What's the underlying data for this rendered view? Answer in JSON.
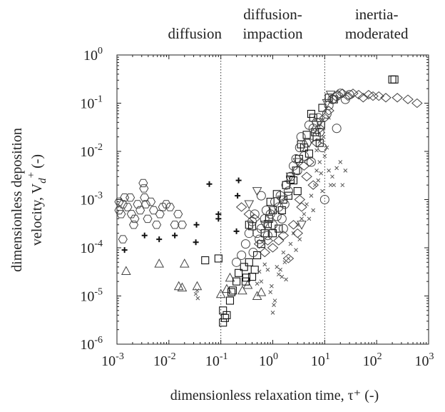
{
  "chart_data": {
    "type": "scatter",
    "title": "",
    "xlabel": "dimensionless relaxation time, τ⁺ (-)",
    "ylabel_line1": "dimensionless deposition",
    "ylabel_line2": "velocity, V",
    "ylabel_sub": "d",
    "ylabel_sup": "+",
    "ylabel_tail": " (-)",
    "x_scale": "log",
    "y_scale": "log",
    "xlim": [
      0.001,
      1000
    ],
    "ylim": [
      1e-06,
      1
    ],
    "grid": false,
    "x_ticks": [
      {
        "base": "10",
        "exp": "-3",
        "value": 0.001
      },
      {
        "base": "10",
        "exp": "-2",
        "value": 0.01
      },
      {
        "base": "10",
        "exp": "-1",
        "value": 0.1
      },
      {
        "base": "10",
        "exp": "0",
        "value": 1
      },
      {
        "base": "10",
        "exp": "1",
        "value": 10
      },
      {
        "base": "10",
        "exp": "2",
        "value": 100
      },
      {
        "base": "10",
        "exp": "3",
        "value": 1000
      }
    ],
    "y_ticks": [
      {
        "base": "10",
        "exp": "-6",
        "value": 1e-06
      },
      {
        "base": "10",
        "exp": "-5",
        "value": 1e-05
      },
      {
        "base": "10",
        "exp": "-4",
        "value": 0.0001
      },
      {
        "base": "10",
        "exp": "-3",
        "value": 0.001
      },
      {
        "base": "10",
        "exp": "-2",
        "value": 0.01
      },
      {
        "base": "10",
        "exp": "-1",
        "value": 0.1
      },
      {
        "base": "10",
        "exp": "0",
        "value": 1
      }
    ],
    "regime_boundaries": [
      0.1,
      10
    ],
    "regions": [
      {
        "lines": [
          "diffusion"
        ],
        "x_center": 0.0316
      },
      {
        "lines": [
          "diffusion-",
          "impaction"
        ],
        "x_center": 1
      },
      {
        "lines": [
          "inertia-",
          "moderated"
        ],
        "x_center": 100
      }
    ],
    "series": [
      {
        "marker": "hexagon",
        "points": [
          [
            0.0011,
            0.0006
          ],
          [
            0.0011,
            0.0009
          ],
          [
            0.0012,
            0.0005
          ],
          [
            0.0013,
            0.0008
          ],
          [
            0.0014,
            0.0011
          ],
          [
            0.0016,
            0.0007
          ],
          [
            0.0018,
            0.0011
          ],
          [
            0.0019,
            0.0005
          ],
          [
            0.0022,
            0.0004
          ],
          [
            0.0025,
            0.0008
          ],
          [
            0.0028,
            0.0006
          ],
          [
            0.0032,
            0.0022
          ],
          [
            0.0033,
            0.0017
          ],
          [
            0.0036,
            0.0008
          ],
          [
            0.0034,
            0.0011
          ],
          [
            0.0039,
            0.0004
          ],
          [
            0.0045,
            0.0009
          ],
          [
            0.0051,
            0.0006
          ],
          [
            0.0058,
            0.0003
          ],
          [
            0.0067,
            0.0005
          ],
          [
            0.0076,
            0.0007
          ],
          [
            0.0089,
            0.0008
          ],
          [
            0.0105,
            0.0007
          ],
          [
            0.013,
            0.0003
          ],
          [
            0.015,
            0.0005
          ],
          [
            0.018,
            0.0003
          ],
          [
            0.0021,
            0.0003
          ],
          [
            0.0013,
            0.00015
          ]
        ]
      },
      {
        "marker": "plus",
        "points": [
          [
            0.0014,
            9e-05
          ],
          [
            0.0034,
            0.00018
          ],
          [
            0.0065,
            0.00015
          ],
          [
            0.013,
            0.00018
          ],
          [
            0.033,
            0.00013
          ],
          [
            0.034,
            0.0003
          ],
          [
            0.06,
            0.0021
          ],
          [
            0.09,
            0.0005
          ],
          [
            0.09,
            0.0004
          ],
          [
            0.2,
            0.00022
          ],
          [
            0.21,
            0.0012
          ],
          [
            0.22,
            0.0025
          ]
        ]
      },
      {
        "marker": "triangle",
        "points": [
          [
            0.0015,
            3.3e-05
          ],
          [
            0.0065,
            4.7e-05
          ],
          [
            0.0155,
            1.6e-05
          ],
          [
            0.018,
            1.5e-05
          ],
          [
            0.02,
            4.7e-05
          ],
          [
            0.035,
            1.6e-05
          ],
          [
            0.1,
            1.1e-05
          ],
          [
            0.13,
            1.4e-05
          ],
          [
            0.15,
            2.4e-05
          ],
          [
            0.26,
            1.3e-05
          ],
          [
            0.33,
            1.7e-05
          ],
          [
            0.5,
            1e-05
          ],
          [
            0.6,
            1.2e-05
          ]
        ]
      },
      {
        "marker": "square",
        "points": [
          [
            0.11,
            5e-06
          ],
          [
            0.12,
            3.5e-06
          ],
          [
            0.11,
            2.8e-06
          ],
          [
            0.13,
            4e-06
          ],
          [
            0.15,
            8e-06
          ],
          [
            0.16,
            1.2e-05
          ],
          [
            0.17,
            1.3e-05
          ],
          [
            0.2,
            2e-05
          ],
          [
            0.22,
            3e-05
          ],
          [
            0.28,
            4e-05
          ],
          [
            0.3,
            2e-05
          ],
          [
            0.31,
            2.4e-05
          ],
          [
            0.35,
            5e-05
          ],
          [
            0.4,
            2.5e-05
          ],
          [
            0.45,
            3.5e-05
          ],
          [
            0.5,
            7e-05
          ],
          [
            0.6,
            0.00012
          ],
          [
            0.7,
            0.0002
          ],
          [
            0.8,
            0.00031
          ],
          [
            0.85,
            0.0004
          ],
          [
            0.9,
            0.0009
          ],
          [
            1.0,
            0.0006
          ],
          [
            1.2,
            0.0013
          ],
          [
            1.3,
            0.00025
          ],
          [
            1.5,
            0.0006
          ],
          [
            1.6,
            0.001
          ],
          [
            1.8,
            0.002
          ],
          [
            2.0,
            0.0012
          ],
          [
            2.2,
            0.0026
          ],
          [
            2.5,
            0.0025
          ],
          [
            2.8,
            0.004
          ],
          [
            3.0,
            0.0015
          ],
          [
            3.2,
            0.007
          ],
          [
            3.5,
            0.014
          ],
          [
            4.0,
            0.012
          ],
          [
            4.5,
            0.022
          ],
          [
            5.0,
            0.009
          ],
          [
            5.5,
            0.06
          ],
          [
            6.0,
            0.05
          ],
          [
            6.5,
            0.025
          ],
          [
            7.0,
            0.02
          ],
          [
            8.0,
            0.015
          ],
          [
            8.5,
            0.035
          ],
          [
            9.0,
            0.08
          ],
          [
            0.35,
            0.0003
          ],
          [
            0.4,
            0.00028
          ],
          [
            1.0,
            0.0002
          ],
          [
            0.09,
            6e-05
          ],
          [
            0.05,
            5.5e-05
          ],
          [
            200,
            0.31
          ],
          [
            220,
            0.31
          ],
          [
            12,
            0.13
          ],
          [
            15,
            0.12
          ]
        ]
      },
      {
        "marker": "circle",
        "points": [
          [
            0.2,
            5e-05
          ],
          [
            0.25,
            7e-05
          ],
          [
            0.3,
            0.00012
          ],
          [
            0.35,
            0.0002
          ],
          [
            0.4,
            0.00035
          ],
          [
            0.45,
            0.0005
          ],
          [
            0.5,
            0.0002
          ],
          [
            0.55,
            0.00015
          ],
          [
            0.6,
            0.00025
          ],
          [
            0.7,
            0.0004
          ],
          [
            0.75,
            0.0006
          ],
          [
            0.8,
            0.00018
          ],
          [
            0.9,
            0.0005
          ],
          [
            1.0,
            0.0003
          ],
          [
            1.1,
            0.0009
          ],
          [
            1.2,
            0.00045
          ],
          [
            1.3,
            0.0007
          ],
          [
            1.4,
            0.0012
          ],
          [
            1.5,
            0.0004
          ],
          [
            1.7,
            0.0008
          ],
          [
            1.8,
            0.002
          ],
          [
            2.0,
            0.0015
          ],
          [
            2.2,
            0.003
          ],
          [
            2.5,
            0.005
          ],
          [
            2.8,
            0.007
          ],
          [
            3.0,
            0.004
          ],
          [
            3.3,
            0.012
          ],
          [
            3.5,
            0.02
          ],
          [
            4.0,
            0.008
          ],
          [
            4.5,
            0.015
          ],
          [
            5.0,
            0.035
          ],
          [
            5.5,
            0.006
          ],
          [
            6.0,
            0.03
          ],
          [
            7.0,
            0.04
          ],
          [
            7.5,
            0.05
          ],
          [
            8.0,
            0.025
          ],
          [
            9.0,
            0.012
          ],
          [
            10,
            0.001
          ],
          [
            11,
            0.06
          ],
          [
            12,
            0.09
          ],
          [
            14,
            0.12
          ],
          [
            17,
            0.14
          ],
          [
            20,
            0.16
          ],
          [
            25,
            0.12
          ],
          [
            30,
            0.15
          ],
          [
            17,
            0.03
          ],
          [
            0.6,
            0.0012
          ],
          [
            0.42,
            8e-05
          ],
          [
            1.6,
            0.00025
          ]
        ]
      },
      {
        "marker": "diamond",
        "points": [
          [
            0.25,
            0.0007
          ],
          [
            0.35,
            0.0005
          ],
          [
            0.45,
            0.0004
          ],
          [
            0.55,
            0.00012
          ],
          [
            0.7,
            8e-05
          ],
          [
            0.8,
            0.00014
          ],
          [
            1.0,
            0.0001
          ],
          [
            1.3,
            0.00014
          ],
          [
            1.6,
            0.00018
          ],
          [
            2.0,
            6e-05
          ],
          [
            2.5,
            0.0003
          ],
          [
            3.0,
            0.0002
          ],
          [
            3.3,
            0.001
          ],
          [
            3.6,
            0.0007
          ],
          [
            4.0,
            0.005
          ],
          [
            4.5,
            0.003
          ],
          [
            5.0,
            0.006
          ],
          [
            6.0,
            0.002
          ],
          [
            7.0,
            0.015
          ],
          [
            8.0,
            0.03
          ],
          [
            10,
            0.05
          ],
          [
            12,
            0.07
          ],
          [
            15,
            0.12
          ],
          [
            18,
            0.15
          ],
          [
            22,
            0.16
          ],
          [
            28,
            0.14
          ],
          [
            35,
            0.16
          ],
          [
            45,
            0.15
          ],
          [
            55,
            0.13
          ],
          [
            70,
            0.15
          ],
          [
            85,
            0.14
          ],
          [
            110,
            0.14
          ],
          [
            150,
            0.13
          ],
          [
            250,
            0.13
          ],
          [
            400,
            0.12
          ],
          [
            600,
            0.1
          ]
        ]
      },
      {
        "marker": "inv-triangle",
        "points": [
          [
            0.35,
            0.0008
          ],
          [
            0.5,
            0.0015
          ],
          [
            0.7,
            0.0003
          ],
          [
            1.0,
            0.0006
          ],
          [
            1.5,
            0.001
          ],
          [
            2.2,
            0.003
          ],
          [
            3.0,
            0.006
          ],
          [
            3.6,
            0.0003
          ],
          [
            5.0,
            0.015
          ],
          [
            8.0,
            0.04
          ],
          [
            11,
            0.1
          ],
          [
            13,
            0.15
          ]
        ]
      },
      {
        "marker": "x",
        "points": [
          [
            0.033,
            1.1e-05
          ],
          [
            0.035,
            1.3e-05
          ],
          [
            0.036,
            9e-06
          ],
          [
            0.5,
            1.8e-05
          ],
          [
            0.55,
            3.2e-05
          ],
          [
            0.6,
            2e-05
          ],
          [
            0.7,
            4.5e-05
          ],
          [
            0.8,
            3.5e-05
          ],
          [
            0.9,
            1.2e-05
          ],
          [
            0.95,
            1.6e-05
          ],
          [
            1.0,
            4.5e-06
          ],
          [
            1.05,
            6.5e-06
          ],
          [
            1.1,
            8e-06
          ],
          [
            1.2,
            4e-05
          ],
          [
            1.3,
            2.8e-05
          ],
          [
            1.4,
            3.5e-05
          ],
          [
            1.5,
            2.5e-05
          ],
          [
            1.6,
            8e-05
          ],
          [
            1.7,
            5e-05
          ],
          [
            1.8,
            2.2e-05
          ],
          [
            2.0,
            6e-05
          ],
          [
            2.2,
            0.00012
          ],
          [
            2.5,
            0.0002
          ],
          [
            2.8,
            9e-05
          ],
          [
            3.0,
            0.0003
          ],
          [
            3.3,
            0.00015
          ],
          [
            3.6,
            0.0004
          ],
          [
            4.0,
            0.0005
          ],
          [
            4.5,
            0.0008
          ],
          [
            5.0,
            0.0004
          ],
          [
            5.5,
            0.0012
          ],
          [
            6.0,
            0.0006
          ],
          [
            6.5,
            0.002
          ],
          [
            7.0,
            0.004
          ],
          [
            7.5,
            0.0025
          ],
          [
            8.0,
            0.006
          ],
          [
            8.5,
            0.0035
          ],
          [
            9.0,
            0.0015
          ],
          [
            10,
            0.008
          ],
          [
            11,
            0.012
          ],
          [
            12,
            0.004
          ],
          [
            13,
            0.002
          ],
          [
            14,
            0.003
          ],
          [
            15,
            0.002
          ],
          [
            17,
            0.0045
          ],
          [
            20,
            0.006
          ],
          [
            22,
            0.002
          ],
          [
            25,
            0.004
          ],
          [
            6.0,
            0.028
          ],
          [
            8.0,
            0.016
          ],
          [
            12,
            0.05
          ],
          [
            9.5,
            0.02
          ],
          [
            7,
            0.0105
          ]
        ]
      }
    ]
  }
}
